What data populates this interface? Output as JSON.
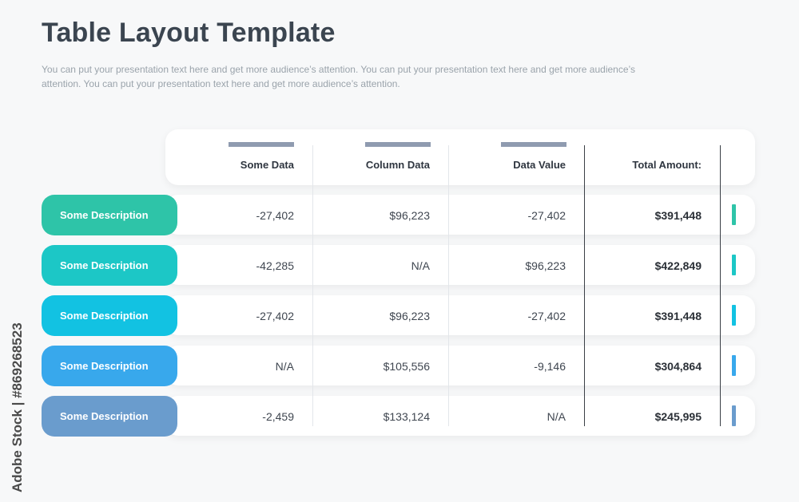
{
  "page": {
    "title": "Table Layout Template",
    "subtitle": "You can put your presentation text here and get more audience’s attention. You can put your presentation text here and get more audience’s attention. You can put your presentation text here and get more audience’s attention.",
    "watermark": "Adobe Stock | #869268523"
  },
  "table": {
    "headers": [
      "Some Data",
      "Column Data",
      "Data Value",
      "Total Amount:"
    ],
    "header_bar_color": "#8f9bb0",
    "rows": [
      {
        "label": "Some Description",
        "color": "#2ec4a8",
        "marker": "#2ec4a8",
        "cells": [
          "-27,402",
          "$96,223",
          "-27,402"
        ],
        "total": "$391,448"
      },
      {
        "label": "Some Description",
        "color": "#1cc7c6",
        "marker": "#1cc7c6",
        "cells": [
          "-42,285",
          "N/A",
          "$96,223"
        ],
        "total": "$422,849"
      },
      {
        "label": "Some Description",
        "color": "#12c2e2",
        "marker": "#12c2e2",
        "cells": [
          "-27,402",
          "$96,223",
          "-27,402"
        ],
        "total": "$391,448"
      },
      {
        "label": "Some Description",
        "color": "#38a8ec",
        "marker": "#38a8ec",
        "cells": [
          "N/A",
          "$105,556",
          "-9,146"
        ],
        "total": "$304,864"
      },
      {
        "label": "Some Description",
        "color": "#6a9ccd",
        "marker": "#6a9ccd",
        "cells": [
          "-2,459",
          "$133,124",
          "N/A"
        ],
        "total": "$245,995"
      }
    ]
  }
}
